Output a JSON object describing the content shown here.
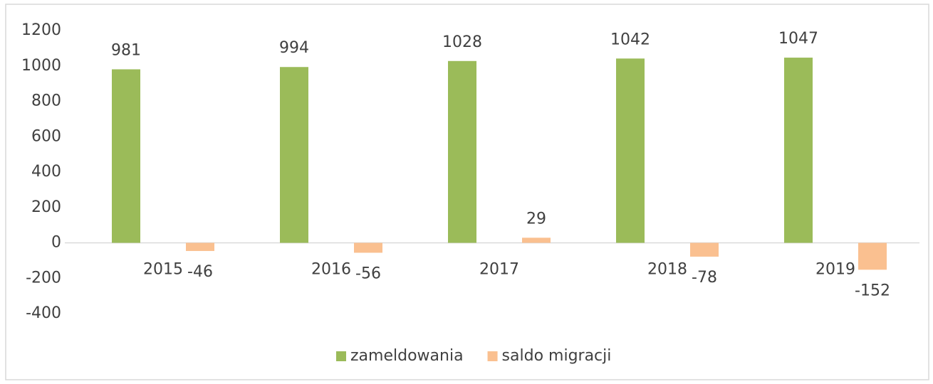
{
  "chart_data": {
    "type": "bar",
    "categories": [
      "2015",
      "2016",
      "2017",
      "2018",
      "2019"
    ],
    "series": [
      {
        "name": "zameldowania",
        "color": "#9bbb59",
        "values": [
          981,
          994,
          1028,
          1042,
          1047
        ]
      },
      {
        "name": "saldo migracji",
        "color": "#fac090",
        "values": [
          -46,
          -56,
          29,
          -78,
          -152
        ]
      }
    ],
    "ylim": [
      -400,
      1200
    ],
    "yticks": [
      -400,
      -200,
      0,
      200,
      400,
      600,
      800,
      1000,
      1200
    ],
    "grid": false,
    "legend": "bottom"
  }
}
